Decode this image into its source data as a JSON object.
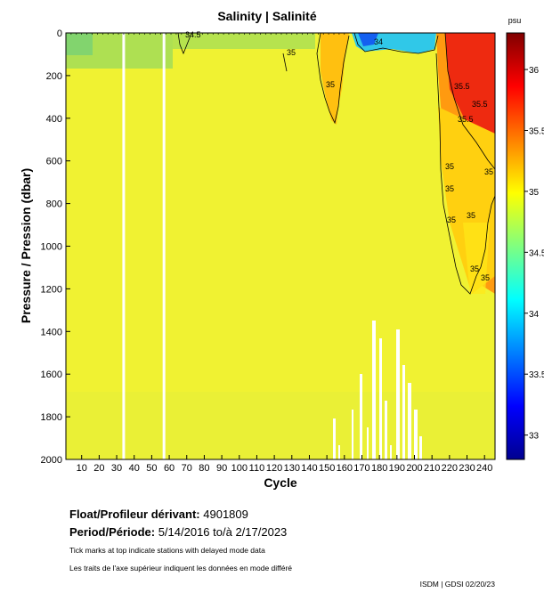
{
  "chart_data": {
    "type": "heatmap",
    "title": "Salinity | Salinité",
    "xlabel": "Cycle",
    "ylabel": "Pressure / Pression (dbar)",
    "xlim": [
      1,
      246
    ],
    "ylim": [
      2000,
      0
    ],
    "x_ticks": [
      10,
      20,
      30,
      40,
      50,
      60,
      70,
      80,
      90,
      100,
      110,
      120,
      130,
      140,
      150,
      160,
      170,
      180,
      190,
      200,
      210,
      220,
      230,
      240
    ],
    "y_ticks": [
      0,
      200,
      400,
      600,
      800,
      1000,
      1200,
      1400,
      1600,
      1800,
      2000
    ],
    "colorbar": {
      "unit": "psu",
      "range": [
        32.8,
        36.3
      ],
      "ticks": [
        33,
        33.5,
        34,
        34.5,
        35,
        35.5,
        36
      ],
      "tick_labels": [
        "33",
        "33.5",
        "34",
        "34.5",
        "35",
        "35.5",
        "36"
      ],
      "colormap": "jet"
    },
    "contour_labels": [
      "34.5",
      "35",
      "34",
      "35",
      "35.5",
      "35.5",
      "35.5",
      "35",
      "35",
      "35",
      "35",
      "35",
      "35",
      "35"
    ],
    "missing_profiles": [
      34,
      57
    ]
  },
  "info": {
    "float_label": "Float/Profileur dérivant:",
    "float_value": "4901809",
    "period_label": "Period/Période:",
    "period_value": "5/14/2016  to/à  2/17/2023",
    "note_en": "Tick marks at top indicate stations with delayed mode data",
    "note_fr": "Les traits de l'axe supérieur indiquent les données en mode différé",
    "credit": "ISDM | GDSI  02/20/23"
  }
}
